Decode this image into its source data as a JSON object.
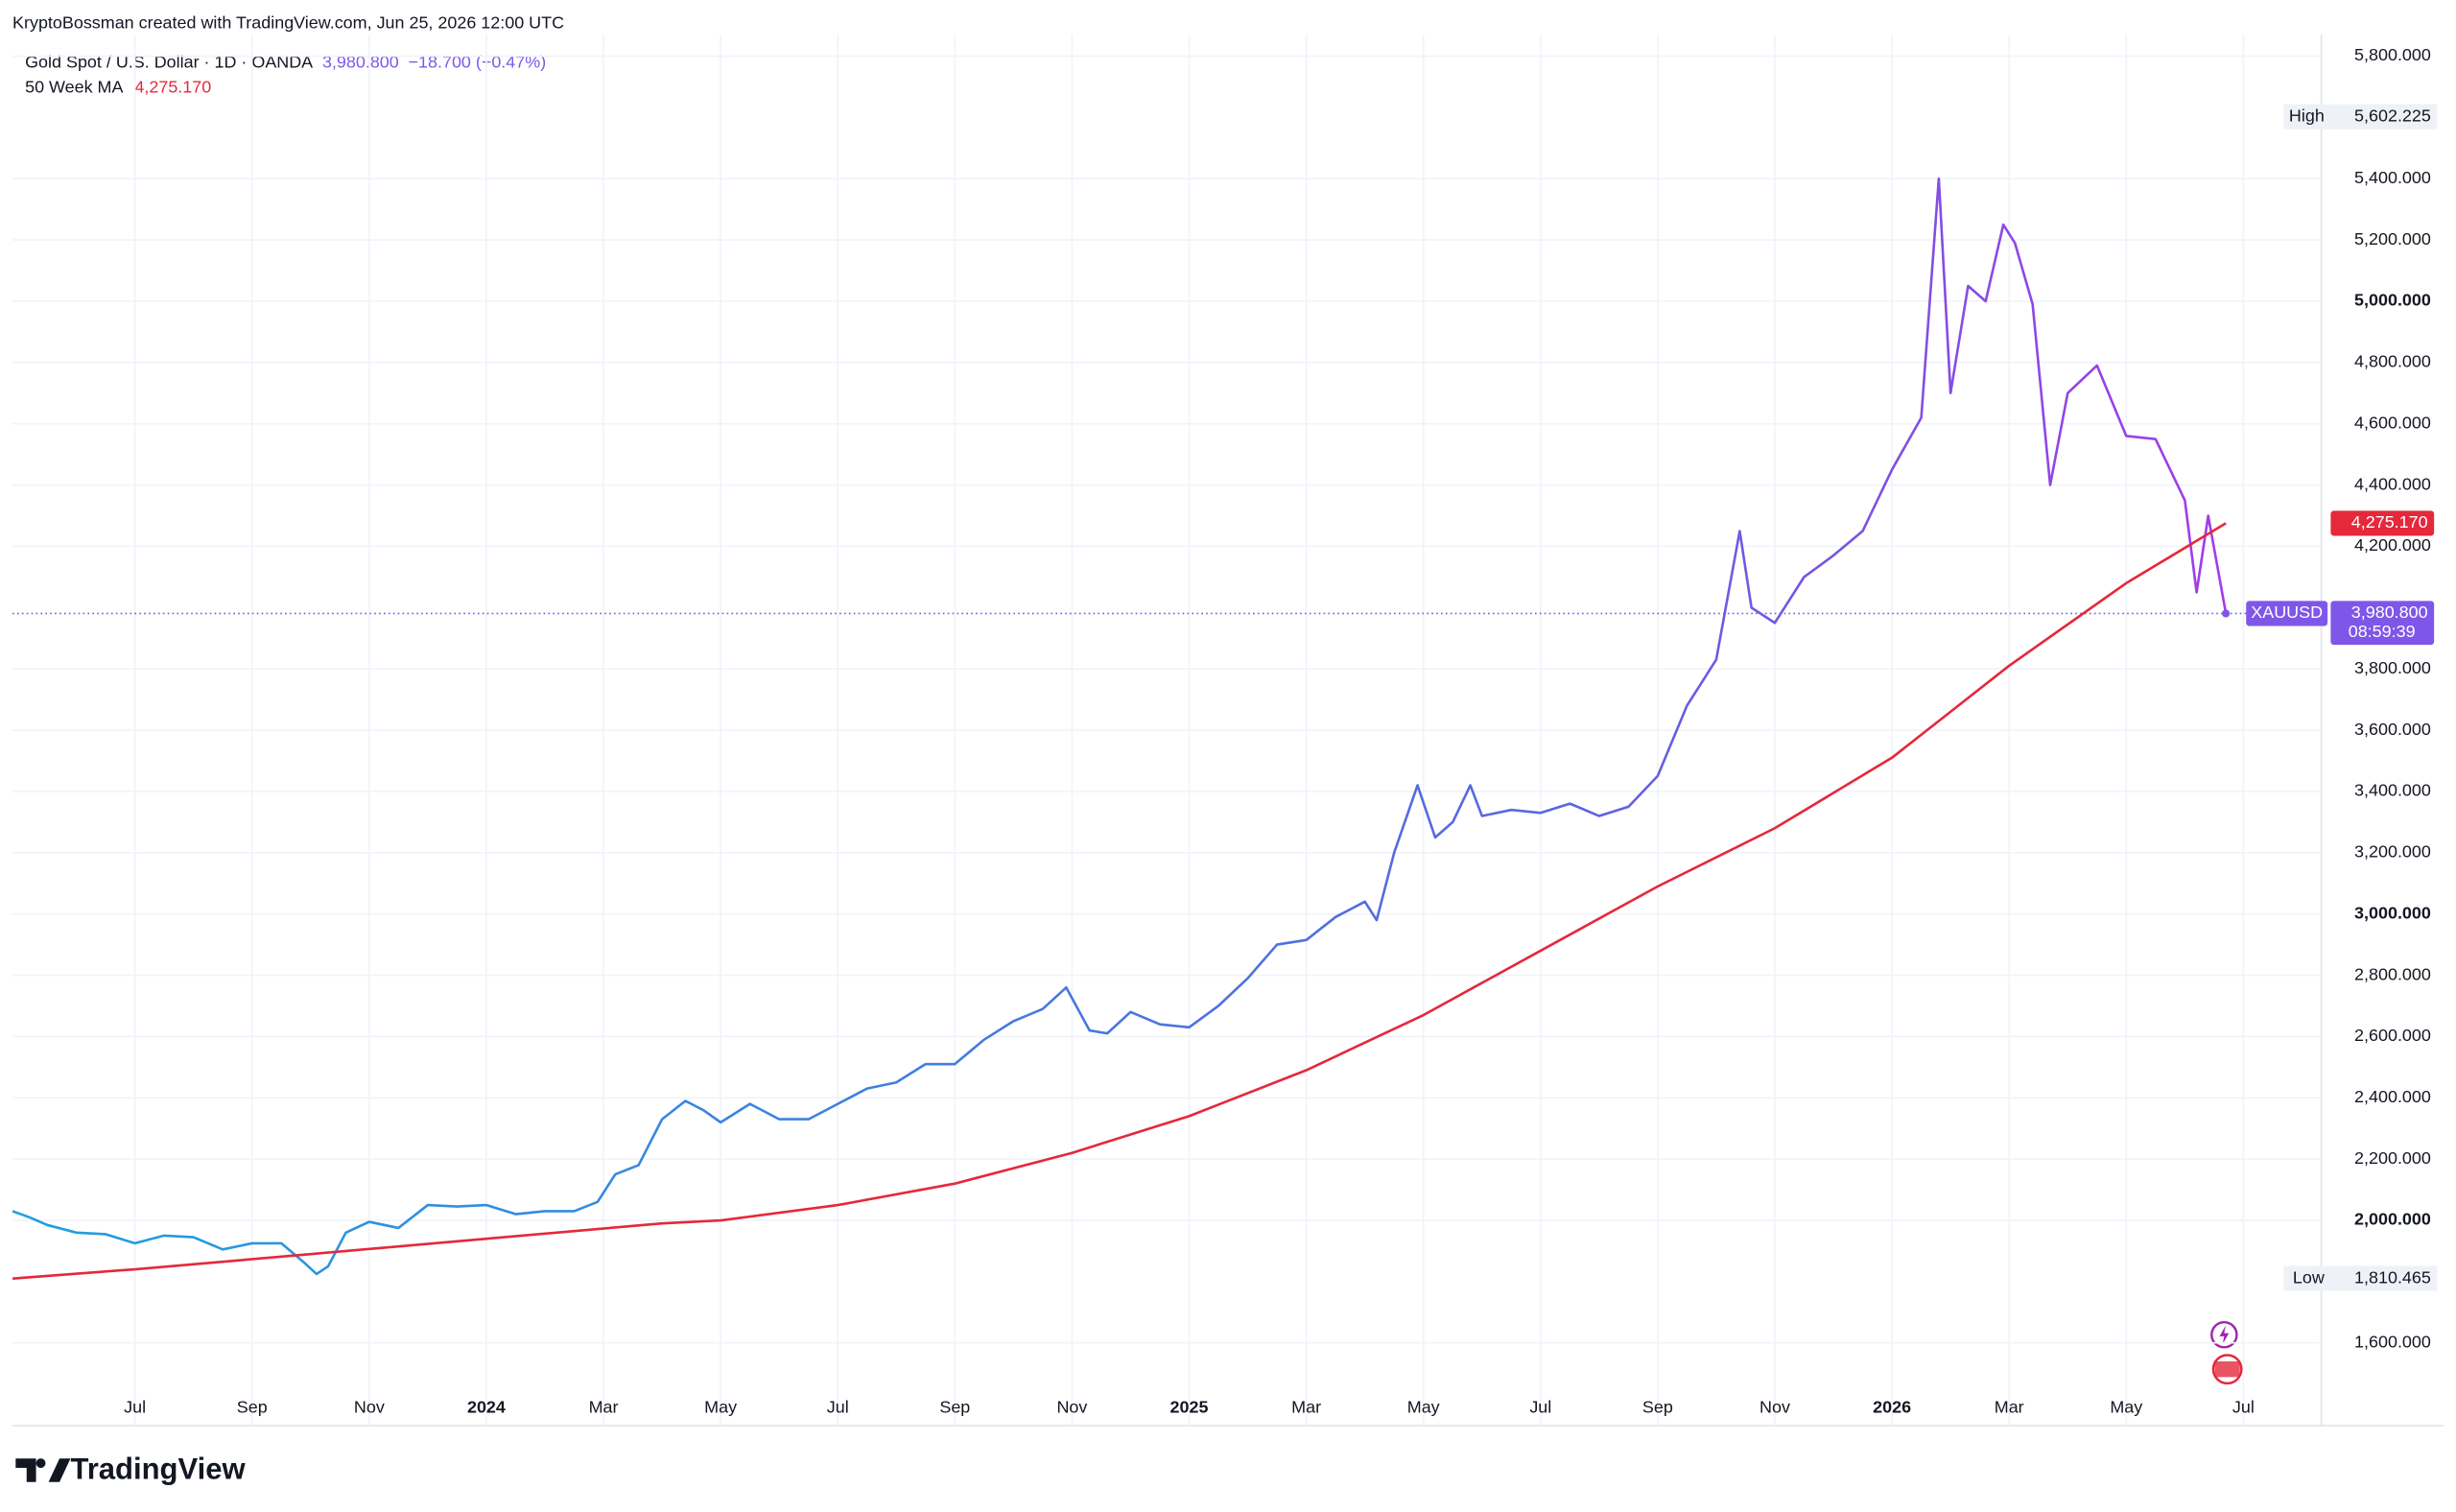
{
  "chart_data": {
    "type": "line",
    "title": "KryptoBossman created with TradingView.com, Jun 25, 2026 12:00 UTC",
    "brand": "TradingView",
    "legend": {
      "symbol": "Gold Spot / U.S. Dollar · 1D · OANDA",
      "price": "3,980.800",
      "change": "−18.700 (−0.47%)",
      "ma_name": "50 Week MA",
      "ma_price": "4,275.170"
    },
    "xlim": [
      -2.09,
      37.33
    ],
    "xticks": [
      {
        "value": 0,
        "label": "Jul"
      },
      {
        "value": 2,
        "label": "Sep"
      },
      {
        "value": 4,
        "label": "Nov"
      },
      {
        "value": 6,
        "label": "2024"
      },
      {
        "value": 8,
        "label": "Mar"
      },
      {
        "value": 10,
        "label": "May"
      },
      {
        "value": 12,
        "label": "Jul"
      },
      {
        "value": 14,
        "label": "Sep"
      },
      {
        "value": 16,
        "label": "Nov"
      },
      {
        "value": 18,
        "label": "2025"
      },
      {
        "value": 20,
        "label": "Mar"
      },
      {
        "value": 22,
        "label": "May"
      },
      {
        "value": 24,
        "label": "Jul"
      },
      {
        "value": 26,
        "label": "Sep"
      },
      {
        "value": 28,
        "label": "Nov"
      },
      {
        "value": 30,
        "label": "2026"
      },
      {
        "value": 32,
        "label": "Mar"
      },
      {
        "value": 34,
        "label": "May"
      },
      {
        "value": 36,
        "label": "Jul"
      }
    ],
    "ylim": [
      1330,
      5870
    ],
    "yticks": [
      {
        "value": 1600,
        "label": "1,600.000"
      },
      {
        "value": 2000,
        "label": "2,000.000"
      },
      {
        "value": 2200,
        "label": "2,200.000"
      },
      {
        "value": 2400,
        "label": "2,400.000"
      },
      {
        "value": 2600,
        "label": "2,600.000"
      },
      {
        "value": 2800,
        "label": "2,800.000"
      },
      {
        "value": 3000,
        "label": "3,000.000"
      },
      {
        "value": 3200,
        "label": "3,200.000"
      },
      {
        "value": 3400,
        "label": "3,400.000"
      },
      {
        "value": 3600,
        "label": "3,600.000"
      },
      {
        "value": 3800,
        "label": "3,800.000"
      },
      {
        "value": 4200,
        "label": "4,200.000"
      },
      {
        "value": 4400,
        "label": "4,400.000"
      },
      {
        "value": 4600,
        "label": "4,600.000"
      },
      {
        "value": 4800,
        "label": "4,800.000"
      },
      {
        "value": 5000,
        "label": "5,000.000"
      },
      {
        "value": 5200,
        "label": "5,200.000"
      },
      {
        "value": 5400,
        "label": "5,400.000"
      },
      {
        "value": 5800,
        "label": "5,800.000"
      }
    ],
    "grid": true,
    "series": [
      {
        "name": "XAUUSD",
        "colors": [
          "#1f9fe0",
          "#5a66e0",
          "#a53ae8"
        ],
        "tag_color": "#7e57e8",
        "last_label": "3,980.800",
        "countdown": "08:59:39",
        "x": [
          -2.09,
          -1.8,
          -1.5,
          -1,
          -0.5,
          0,
          0.5,
          1,
          1.5,
          2,
          2.5,
          2.9,
          3.1,
          3.3,
          3.6,
          4,
          4.5,
          5,
          5.5,
          6,
          6.5,
          7,
          7.5,
          7.9,
          8.2,
          8.6,
          9,
          9.4,
          9.7,
          10,
          10.5,
          11,
          11.5,
          12,
          12.5,
          13,
          13.5,
          14,
          14.5,
          15,
          15.5,
          15.9,
          16.3,
          16.6,
          17,
          17.5,
          18,
          18.5,
          19,
          19.5,
          20,
          20.5,
          21,
          21.2,
          21.5,
          21.9,
          22.2,
          22.5,
          22.8,
          23,
          23.5,
          24,
          24.5,
          25,
          25.5,
          26,
          26.5,
          27,
          27.4,
          27.6,
          28,
          28.5,
          29,
          29.5,
          30,
          30.5,
          30.8,
          31,
          31.3,
          31.6,
          31.9,
          32.1,
          32.4,
          32.7,
          33,
          33.5,
          34,
          34.5,
          35,
          35.2,
          35.4,
          35.7
        ],
        "values": [
          2030,
          2010,
          1985,
          1960,
          1955,
          1925,
          1950,
          1945,
          1905,
          1925,
          1925,
          1860,
          1825,
          1850,
          1960,
          1995,
          1975,
          2050,
          2045,
          2050,
          2020,
          2030,
          2030,
          2060,
          2150,
          2180,
          2330,
          2390,
          2360,
          2320,
          2380,
          2330,
          2330,
          2380,
          2430,
          2450,
          2510,
          2510,
          2590,
          2650,
          2690,
          2760,
          2620,
          2610,
          2680,
          2640,
          2630,
          2700,
          2790,
          2900,
          2915,
          2990,
          3040,
          2980,
          3200,
          3420,
          3250,
          3300,
          3420,
          3320,
          3340,
          3330,
          3360,
          3320,
          3350,
          3450,
          3680,
          3830,
          4250,
          4000,
          3950,
          4100,
          4170,
          4250,
          4450,
          4620,
          5400,
          4700,
          5050,
          5000,
          5250,
          5190,
          4990,
          4400,
          4700,
          4790,
          4560,
          4550,
          4350,
          4050,
          4300,
          3980.8
        ]
      },
      {
        "name": "50 Week MA",
        "color": "#e5283b",
        "last_label": "4,275.170",
        "x": [
          -2.09,
          0,
          3,
          6,
          9,
          10,
          12,
          14,
          16,
          18,
          20,
          22,
          24,
          26,
          28,
          30,
          32,
          34,
          35.7
        ],
        "values": [
          1810,
          1840,
          1890,
          1940,
          1990,
          2000,
          2050,
          2120,
          2220,
          2340,
          2490,
          2670,
          2880,
          3090,
          3280,
          3510,
          3810,
          4080,
          4275.17
        ]
      }
    ],
    "extremes": [
      {
        "name": "High",
        "value": 5602.225,
        "label": "5,602.225"
      },
      {
        "name": "Low",
        "value": 1810.465,
        "label": "1,810.465"
      }
    ]
  }
}
